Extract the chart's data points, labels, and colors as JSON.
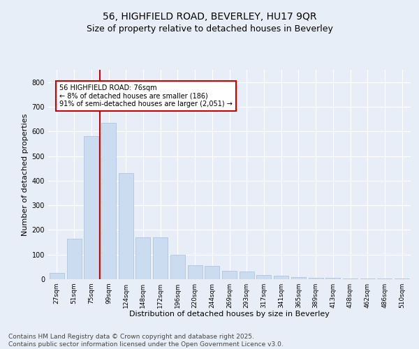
{
  "title1": "56, HIGHFIELD ROAD, BEVERLEY, HU17 9QR",
  "title2": "Size of property relative to detached houses in Beverley",
  "xlabel": "Distribution of detached houses by size in Beverley",
  "ylabel": "Number of detached properties",
  "categories": [
    "27sqm",
    "51sqm",
    "75sqm",
    "99sqm",
    "124sqm",
    "148sqm",
    "172sqm",
    "196sqm",
    "220sqm",
    "244sqm",
    "269sqm",
    "293sqm",
    "317sqm",
    "341sqm",
    "365sqm",
    "389sqm",
    "413sqm",
    "438sqm",
    "462sqm",
    "486sqm",
    "510sqm"
  ],
  "values": [
    25,
    165,
    580,
    635,
    430,
    170,
    170,
    100,
    58,
    55,
    35,
    30,
    18,
    15,
    8,
    5,
    5,
    3,
    2,
    2,
    2
  ],
  "bar_color": "#ccdcf0",
  "bar_edge_color": "#aabcd8",
  "vline_color": "#cc0000",
  "annotation_text": "56 HIGHFIELD ROAD: 76sqm\n← 8% of detached houses are smaller (186)\n91% of semi-detached houses are larger (2,051) →",
  "annotation_box_color": "#ffffff",
  "annotation_box_edge": "#cc0000",
  "ylim": [
    0,
    850
  ],
  "yticks": [
    0,
    100,
    200,
    300,
    400,
    500,
    600,
    700,
    800
  ],
  "bg_color": "#e8eef8",
  "plot_bg_color": "#e8eef8",
  "footer": "Contains HM Land Registry data © Crown copyright and database right 2025.\nContains public sector information licensed under the Open Government Licence v3.0.",
  "title_fontsize": 10,
  "subtitle_fontsize": 9,
  "axis_label_fontsize": 8,
  "tick_fontsize": 6.5,
  "footer_fontsize": 6.5
}
